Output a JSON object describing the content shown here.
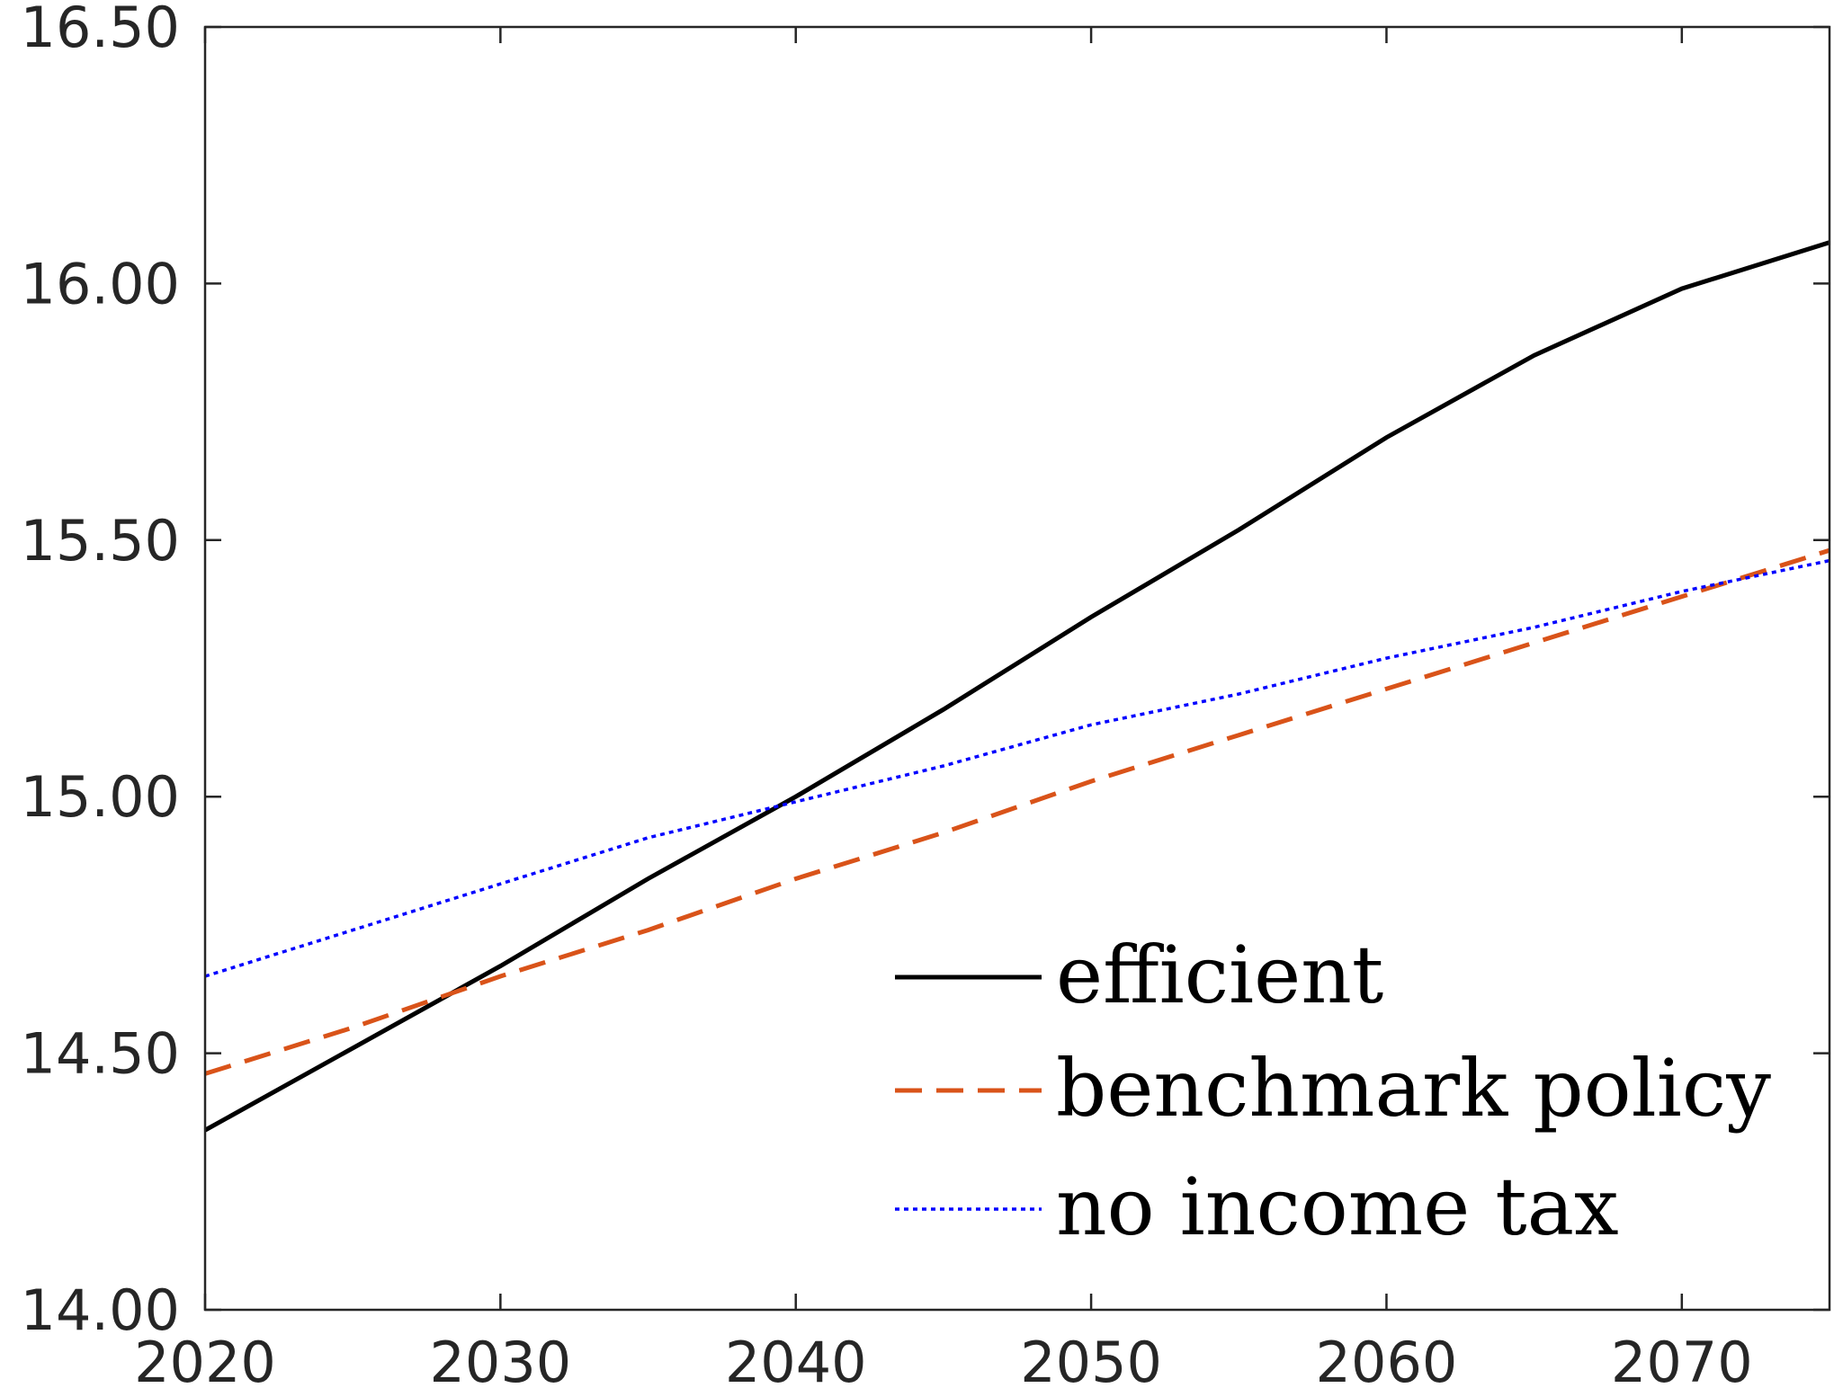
{
  "chart_data": {
    "type": "line",
    "title": "",
    "xlabel": "",
    "ylabel": "",
    "xlim": [
      2020,
      2075
    ],
    "ylim": [
      14.0,
      16.5
    ],
    "xticks": [
      "2020",
      "2030",
      "2040",
      "2050",
      "2060",
      "2070"
    ],
    "yticks": [
      "14.00",
      "14.50",
      "15.00",
      "15.50",
      "16.00",
      "16.50"
    ],
    "grid": false,
    "legend_position": "bottom-right",
    "series": [
      {
        "name": "efficient",
        "style": "solid",
        "color": "#000000",
        "x": [
          2020,
          2025,
          2030,
          2035,
          2040,
          2045,
          2050,
          2055,
          2060,
          2065,
          2070,
          2075
        ],
        "y": [
          14.35,
          14.51,
          14.67,
          14.84,
          15.0,
          15.17,
          15.35,
          15.52,
          15.7,
          15.86,
          15.99,
          16.08
        ]
      },
      {
        "name": "benchmark policy",
        "style": "dashed",
        "color": "#D95319",
        "x": [
          2020,
          2025,
          2030,
          2035,
          2040,
          2045,
          2050,
          2055,
          2060,
          2065,
          2070,
          2075
        ],
        "y": [
          14.46,
          14.55,
          14.65,
          14.74,
          14.84,
          14.93,
          15.03,
          15.12,
          15.21,
          15.3,
          15.39,
          15.48
        ]
      },
      {
        "name": "no income tax",
        "style": "dotted",
        "color": "#0000FF",
        "x": [
          2020,
          2025,
          2030,
          2035,
          2040,
          2045,
          2050,
          2055,
          2060,
          2065,
          2070,
          2075
        ],
        "y": [
          14.65,
          14.74,
          14.83,
          14.92,
          14.99,
          15.06,
          15.14,
          15.2,
          15.27,
          15.33,
          15.4,
          15.46
        ]
      }
    ]
  }
}
